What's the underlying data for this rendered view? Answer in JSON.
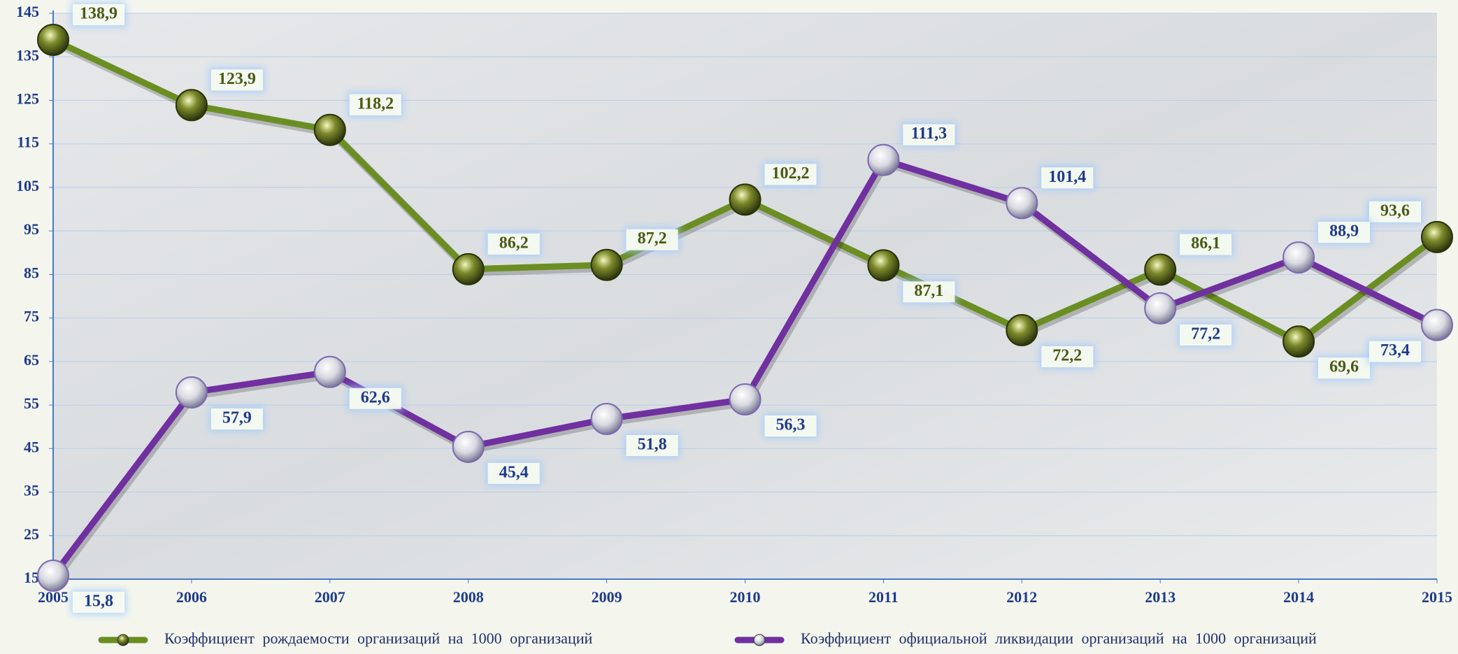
{
  "chart_data": {
    "type": "line",
    "x": [
      2005,
      2006,
      2007,
      2008,
      2009,
      2010,
      2011,
      2012,
      2013,
      2014,
      2015
    ],
    "xlim": [
      2005,
      2015
    ],
    "xticks": [
      2005,
      2006,
      2007,
      2008,
      2009,
      2010,
      2011,
      2012,
      2013,
      2014,
      2015
    ],
    "ylim": [
      15,
      145
    ],
    "yticks": [
      15,
      25,
      35,
      45,
      55,
      65,
      75,
      85,
      95,
      105,
      115,
      125,
      135,
      145
    ],
    "grid": true,
    "series": [
      {
        "name": "Коэффициент рождаемости организаций на 1000 организаций",
        "color": "#6b8e23",
        "values": [
          138.9,
          123.9,
          118.2,
          86.2,
          87.2,
          102.2,
          87.1,
          72.2,
          86.1,
          69.6,
          93.6
        ],
        "value_labels": [
          "138,9",
          "123,9",
          "118,2",
          "86,2",
          "87,2",
          "102,2",
          "87,1",
          "72,2",
          "86,1",
          "69,6",
          "93,6"
        ]
      },
      {
        "name": "Коэффициент официальной ликвидации организаций на 1000 организаций",
        "color": "#7030a0",
        "values": [
          15.8,
          57.9,
          62.6,
          45.4,
          51.8,
          56.3,
          111.3,
          101.4,
          77.2,
          88.9,
          73.4
        ],
        "value_labels": [
          "15,8",
          "57,9",
          "62,6",
          "45,4",
          "51,8",
          "56,3",
          "111,3",
          "101,4",
          "77,2",
          "88,9",
          "73,4"
        ]
      }
    ]
  }
}
